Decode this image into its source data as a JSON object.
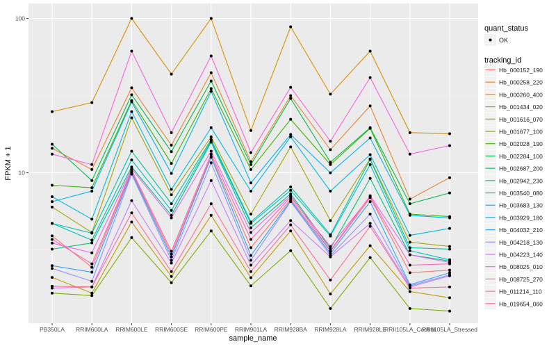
{
  "chart_data": {
    "type": "line",
    "xlabel": "sample_name",
    "ylabel": "FPKM + 1",
    "y_scale": "log10",
    "ylim": [
      1.06,
      125
    ],
    "y_ticks": [
      {
        "value": 10,
        "label": "10"
      },
      {
        "value": 100,
        "label": "100"
      }
    ],
    "grid": true,
    "legend_position": "right",
    "categories": [
      "PB350LA",
      "RRIM600LA",
      "RRIM600LE",
      "RRIM600SE",
      "RRIM600PE",
      "RRIM901LA",
      "RRIM928BA",
      "RRIM928LA",
      "RRIM928LE",
      "RRII105LA_Control",
      "RRII105LA_Stressed"
    ],
    "shape_legend": {
      "title": "quant_status",
      "items": [
        {
          "label": "OK"
        }
      ]
    },
    "color_legend_title": "tracking_id",
    "series": [
      {
        "name": "Hb_000152_190",
        "color": "#F8766D",
        "values": [
          3.9,
          2.44,
          10.2,
          2.97,
          12.8,
          3.27,
          6.75,
          3.1,
          6.9,
          2.25,
          2.34
        ]
      },
      {
        "name": "Hb_000258_220",
        "color": "#EA8331",
        "values": [
          14.4,
          10.5,
          35.5,
          15.1,
          44.5,
          11.8,
          31.6,
          14.1,
          27.1,
          6.75,
          9.3
        ]
      },
      {
        "name": "Hb_000260_400",
        "color": "#D89000",
        "values": [
          24.9,
          28.5,
          100,
          43.6,
          100,
          18.8,
          88.3,
          32.3,
          61.4,
          18.2,
          17.9
        ]
      },
      {
        "name": "Hb_001434_020",
        "color": "#C09B00",
        "values": [
          2.1,
          1.66,
          4.8,
          2.13,
          5.3,
          2.09,
          4.2,
          1.64,
          3.37,
          1.7,
          1.55
        ]
      },
      {
        "name": "Hb_001616_070",
        "color": "#A3A500",
        "values": [
          6.0,
          4.1,
          22.7,
          7.2,
          17.1,
          5.4,
          14.7,
          4.9,
          12.3,
          3.55,
          3.33
        ]
      },
      {
        "name": "Hb_001677_100",
        "color": "#7CAE00",
        "values": [
          1.66,
          1.6,
          3.8,
          1.94,
          4.2,
          1.85,
          3.13,
          1.32,
          2.82,
          1.32,
          1.27
        ]
      },
      {
        "name": "Hb_002028_190",
        "color": "#39B600",
        "values": [
          8.3,
          8.0,
          29.4,
          11.5,
          35.1,
          10.5,
          22.2,
          11.3,
          19.4,
          5.4,
          5.2
        ]
      },
      {
        "name": "Hb_002284_100",
        "color": "#00BB4E",
        "values": [
          15.3,
          8.9,
          32,
          13.7,
          39.3,
          11.3,
          30.3,
          11.7,
          19.6,
          6.3,
          7.4
        ]
      },
      {
        "name": "Hb_002687_200",
        "color": "#00BF7D",
        "values": [
          3.2,
          3.51,
          10.9,
          5.3,
          15.8,
          4.4,
          7.3,
          3.23,
          9.2,
          2.94,
          2.68
        ]
      },
      {
        "name": "Hb_002942_230",
        "color": "#00C1A3",
        "values": [
          4.7,
          4.06,
          13.8,
          6.3,
          16.4,
          4.8,
          8.1,
          3.97,
          12.2,
          3.27,
          3.2
        ]
      },
      {
        "name": "Hb_003540_080",
        "color": "#00BFC4",
        "values": [
          4.7,
          3.66,
          12.1,
          5.7,
          16.1,
          4.7,
          7.7,
          3.89,
          11.3,
          3.13,
          2.73
        ]
      },
      {
        "name": "Hb_003683_130",
        "color": "#00BAE0",
        "values": [
          7.0,
          5.0,
          24.9,
          7.8,
          19.6,
          7.6,
          17.1,
          7.6,
          13.1,
          3.93,
          4.36
        ]
      },
      {
        "name": "Hb_003929_180",
        "color": "#00B0F6",
        "values": [
          6.5,
          7.6,
          28.8,
          9.9,
          33.7,
          8.6,
          17.7,
          10,
          16.8,
          5.3,
          5.1
        ]
      },
      {
        "name": "Hb_004032_210",
        "color": "#35A2FF",
        "values": [
          2.5,
          2.27,
          10,
          2.85,
          12.6,
          2.91,
          6.6,
          3.0,
          6.5,
          1.88,
          2.25
        ]
      },
      {
        "name": "Hb_004218_130",
        "color": "#9590FF",
        "values": [
          2.4,
          1.98,
          9.8,
          2.71,
          11.6,
          2.71,
          6.5,
          2.91,
          5.4,
          1.85,
          2.18
        ]
      },
      {
        "name": "Hb_004223_140",
        "color": "#C77CFF",
        "values": [
          1.79,
          1.82,
          6.6,
          2.6,
          8.9,
          2.52,
          4.9,
          2.85,
          4.7,
          1.82,
          2.15
        ]
      },
      {
        "name": "Hb_008025_010",
        "color": "#E76BF3",
        "values": [
          3.5,
          3.03,
          10.6,
          5.1,
          13.8,
          4.1,
          7.1,
          3.13,
          7.1,
          2.94,
          2.62
        ]
      },
      {
        "name": "Hb_008725_270",
        "color": "#FA62DB",
        "values": [
          13.2,
          11.3,
          61.4,
          18.2,
          57.1,
          13.5,
          35.8,
          16.0,
          41.4,
          13.2,
          15.0
        ]
      },
      {
        "name": "Hb_011214_110",
        "color": "#FF62BC",
        "values": [
          3.7,
          2.57,
          10.4,
          3.1,
          13.2,
          3.7,
          6.95,
          3.33,
          7.0,
          2.52,
          2.57
        ]
      },
      {
        "name": "Hb_019654_060",
        "color": "#FF6C91",
        "values": [
          1.84,
          1.82,
          5.5,
          2.29,
          6.3,
          2.29,
          4.6,
          2.02,
          4.5,
          1.79,
          1.82
        ]
      }
    ]
  }
}
